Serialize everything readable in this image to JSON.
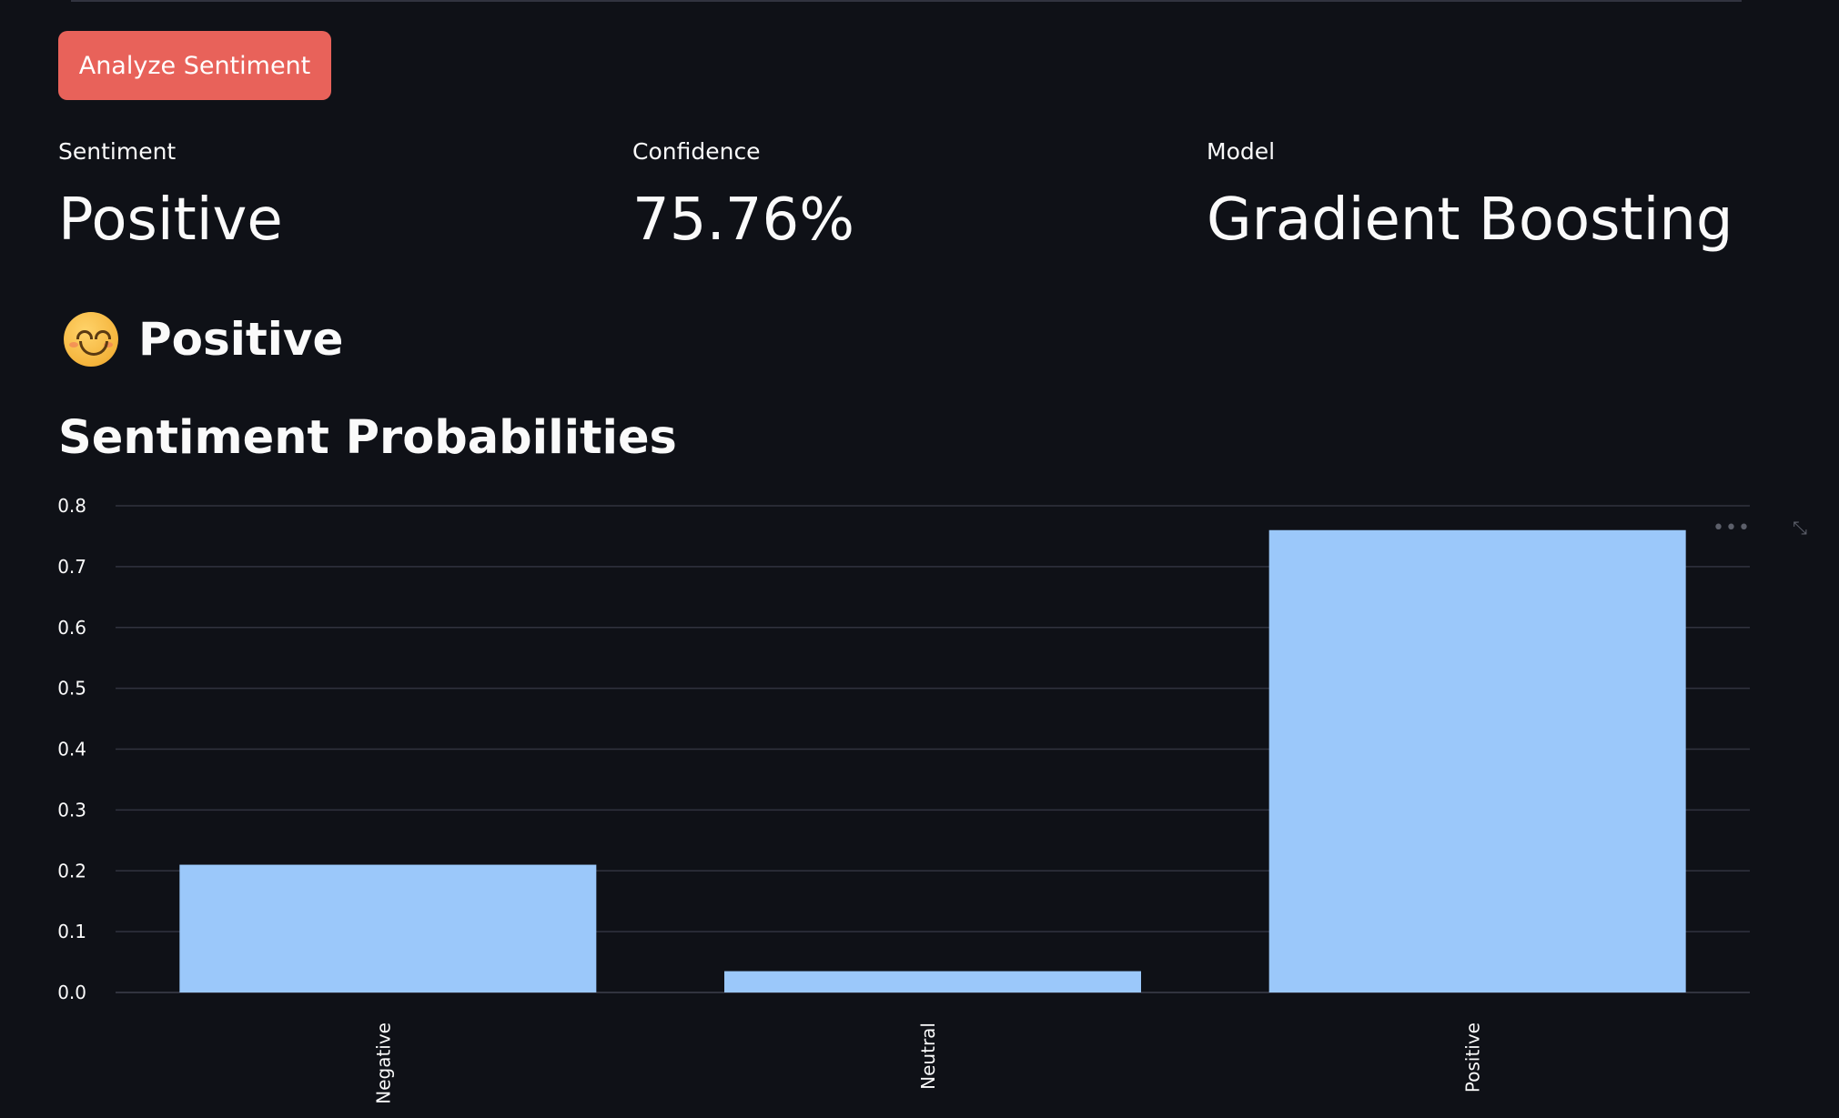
{
  "actions": {
    "analyze_label": "Analyze Sentiment"
  },
  "metrics": [
    {
      "label": "Sentiment",
      "value": "Positive"
    },
    {
      "label": "Confidence",
      "value": "75.76%"
    },
    {
      "label": "Model",
      "value": "Gradient Boosting"
    }
  ],
  "result": {
    "icon": "smiling-face-icon",
    "label": "Positive"
  },
  "section": {
    "title": "Sentiment Probabilities"
  },
  "chart_toolbar": {
    "menu_icon": "ellipsis-icon",
    "expand_icon": "expand-icon"
  },
  "colors": {
    "background": "#0f1117",
    "button": "#e8625a",
    "bar": "#9bc8fa",
    "grid": "#31333f"
  },
  "chart_data": {
    "type": "bar",
    "categories": [
      "Negative",
      "Neutral",
      "Positive"
    ],
    "values": [
      0.21,
      0.035,
      0.76
    ],
    "yticks": [
      "0.0",
      "0.1",
      "0.2",
      "0.3",
      "0.4",
      "0.5",
      "0.6",
      "0.7",
      "0.8"
    ],
    "ylim": [
      0,
      0.8
    ],
    "grid": true,
    "xlabel": "",
    "ylabel": ""
  }
}
